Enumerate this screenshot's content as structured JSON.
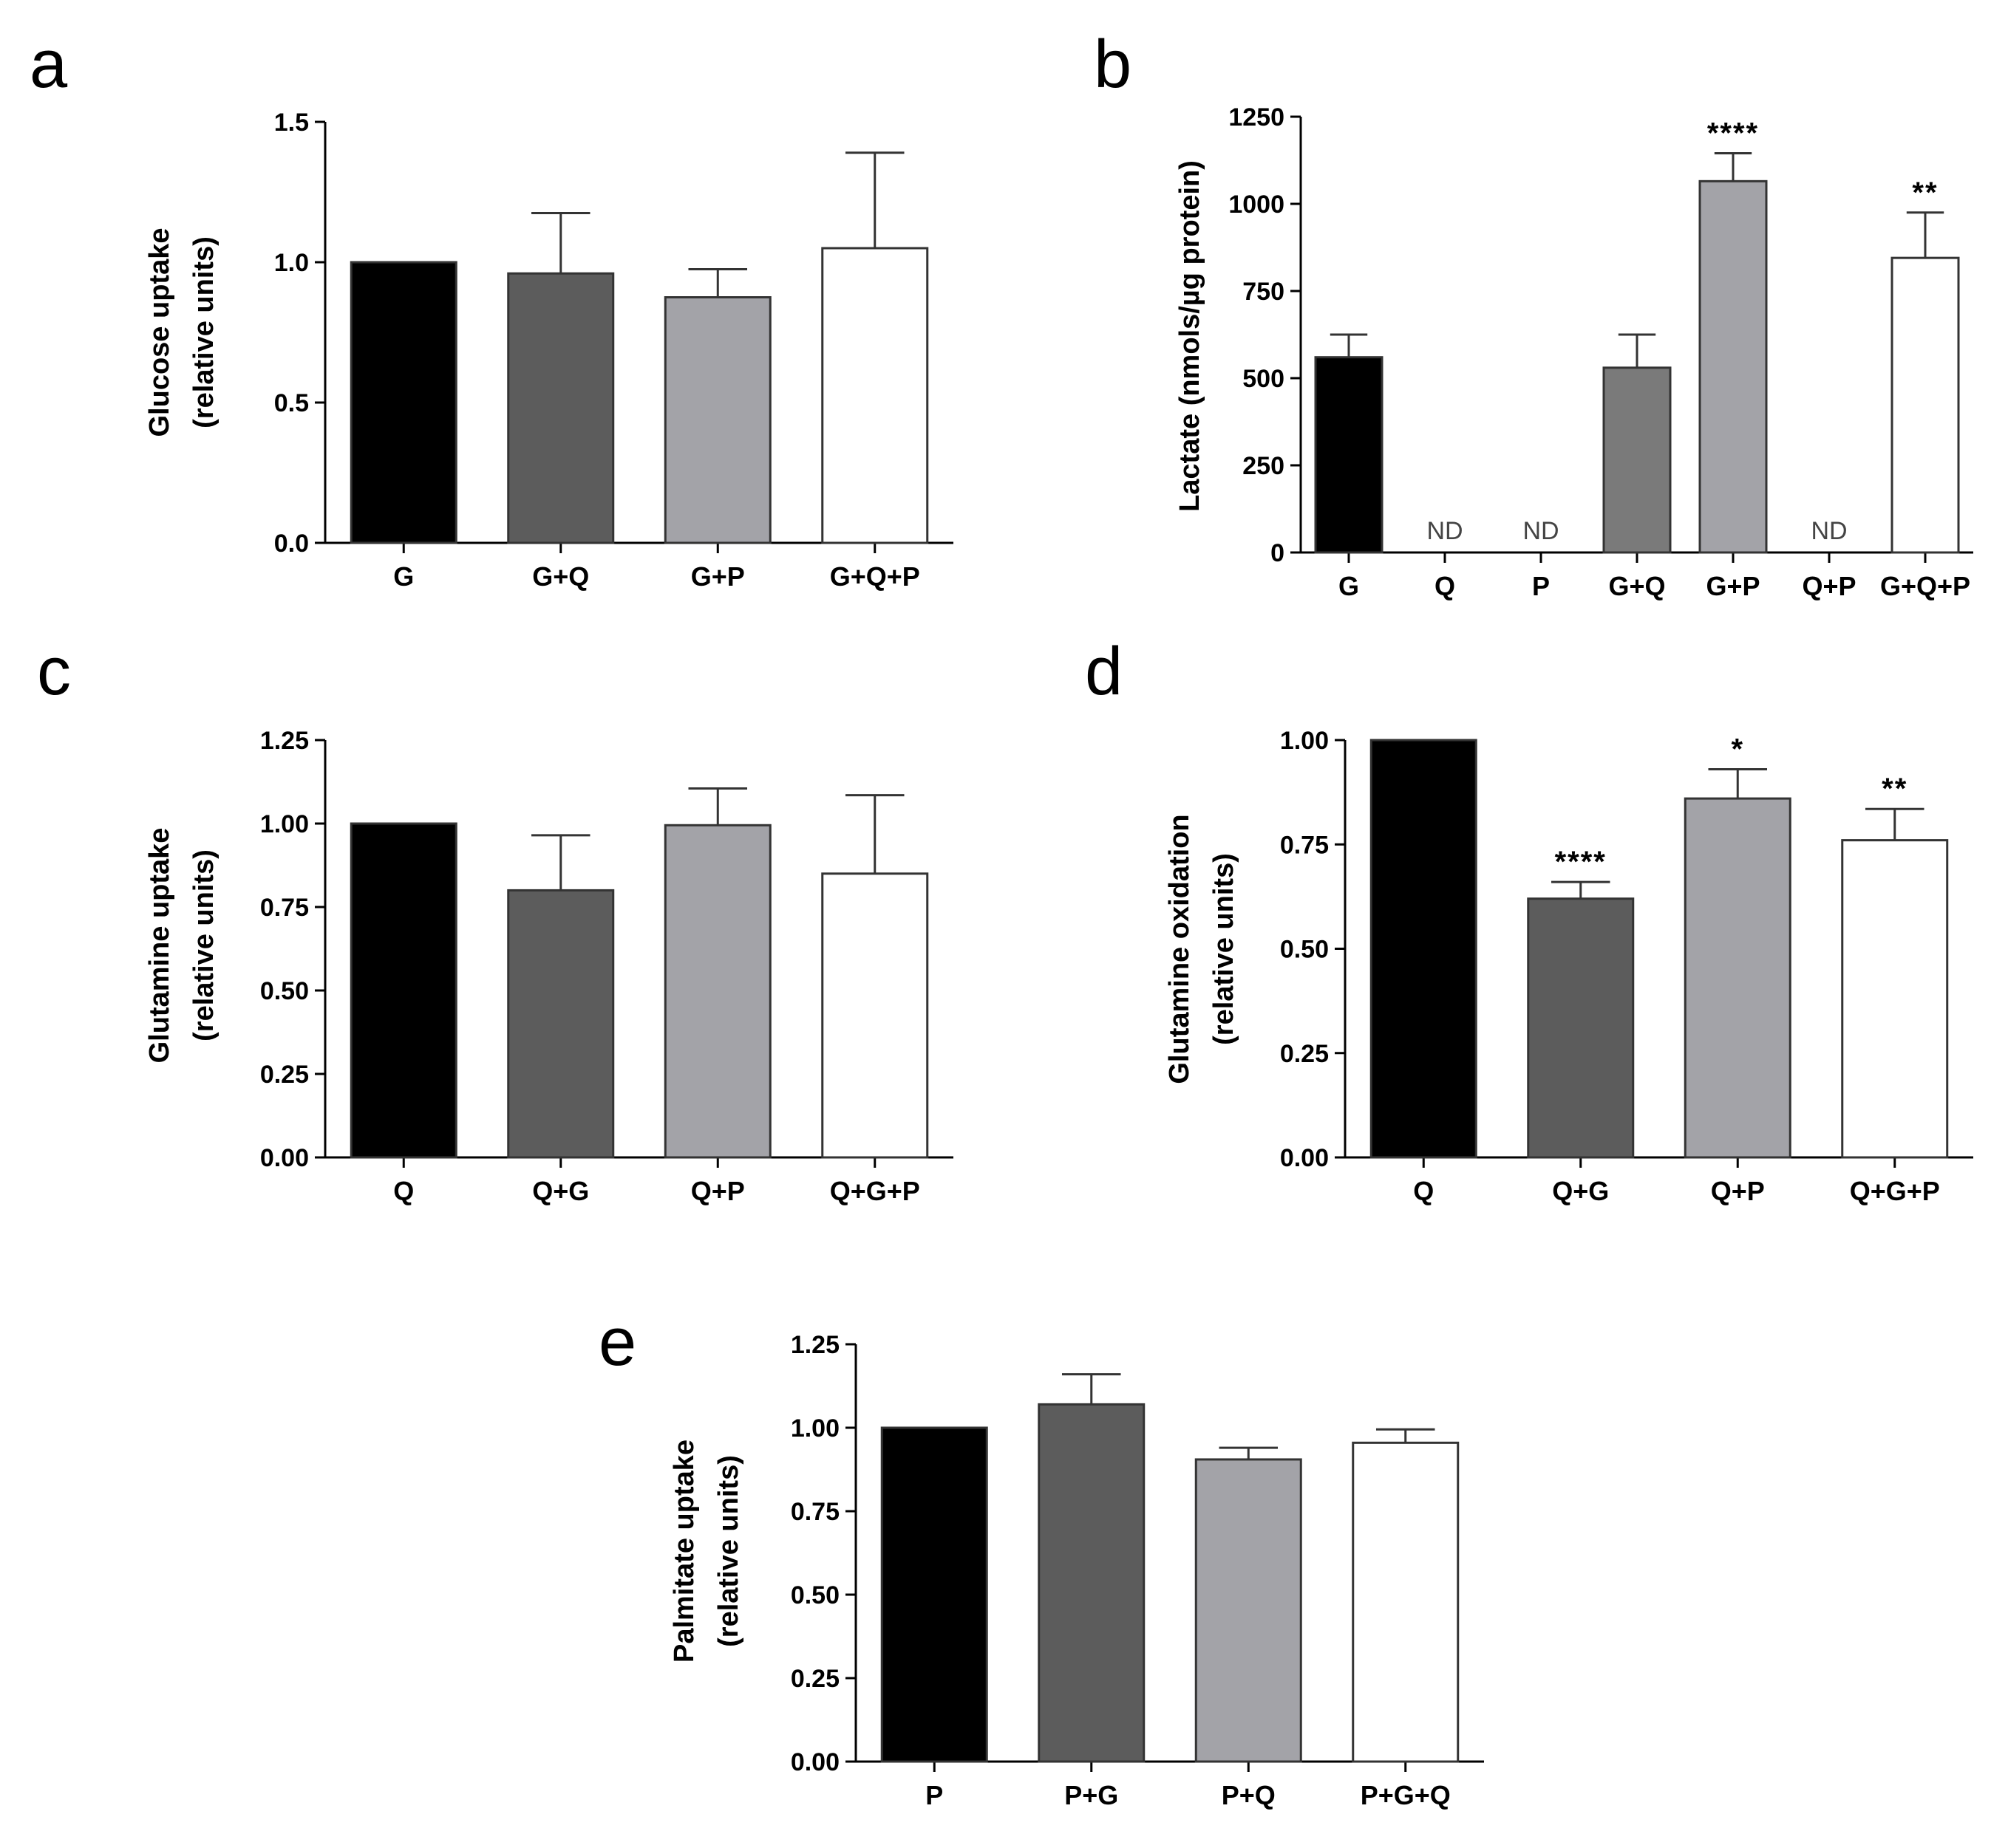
{
  "chart_data": [
    {
      "panel": "a",
      "type": "bar",
      "title": "",
      "xlabel": "",
      "ylabel": [
        "Glucose uptake",
        "(relative units)"
      ],
      "ylim": [
        0,
        1.5
      ],
      "yticks": [
        "0.0",
        "0.5",
        "1.0",
        "1.5"
      ],
      "categories": [
        "G",
        "G+Q",
        "G+P",
        "G+Q+P"
      ],
      "values": [
        1.0,
        0.96,
        0.875,
        1.05
      ],
      "errors": [
        0,
        0.215,
        0.1,
        0.34
      ],
      "colors": [
        "#000000",
        "#5c5c5c",
        "#a3a3a8",
        "#ffffff"
      ],
      "annotations": [
        "",
        "",
        "",
        ""
      ]
    },
    {
      "panel": "b",
      "type": "bar",
      "title": "",
      "xlabel": "",
      "ylabel": [
        "Lactate (nmols/µg protein)"
      ],
      "ylim": [
        0,
        1250
      ],
      "yticks": [
        "0",
        "250",
        "500",
        "750",
        "1000",
        "1250"
      ],
      "categories": [
        "G",
        "Q",
        "P",
        "G+Q",
        "G+P",
        "Q+P",
        "G+Q+P"
      ],
      "values": [
        560,
        null,
        null,
        530,
        1065,
        null,
        845
      ],
      "errors": [
        65,
        0,
        0,
        95,
        80,
        0,
        130
      ],
      "colors": [
        "#000000",
        "#000000",
        "#000000",
        "#7a7a7a",
        "#a3a3a8",
        "#000000",
        "#ffffff"
      ],
      "annotations": [
        "",
        "ND",
        "ND",
        "",
        "****",
        "ND",
        "**"
      ]
    },
    {
      "panel": "c",
      "type": "bar",
      "title": "",
      "xlabel": "",
      "ylabel": [
        "Glutamine uptake",
        "(relative units)"
      ],
      "ylim": [
        0,
        1.25
      ],
      "yticks": [
        "0.00",
        "0.25",
        "0.50",
        "0.75",
        "1.00",
        "1.25"
      ],
      "categories": [
        "Q",
        "Q+G",
        "Q+P",
        "Q+G+P"
      ],
      "values": [
        1.0,
        0.8,
        0.995,
        0.85
      ],
      "errors": [
        0,
        0.165,
        0.11,
        0.235
      ],
      "colors": [
        "#000000",
        "#5c5c5c",
        "#a3a3a8",
        "#ffffff"
      ],
      "annotations": [
        "",
        "",
        "",
        ""
      ]
    },
    {
      "panel": "d",
      "type": "bar",
      "title": "",
      "xlabel": "",
      "ylabel": [
        "Glutamine oxidation",
        "(relative units)"
      ],
      "ylim": [
        0,
        1.0
      ],
      "yticks": [
        "0.00",
        "0.25",
        "0.50",
        "0.75",
        "1.00"
      ],
      "categories": [
        "Q",
        "Q+G",
        "Q+P",
        "Q+G+P"
      ],
      "values": [
        1.0,
        0.62,
        0.86,
        0.76
      ],
      "errors": [
        0,
        0.04,
        0.07,
        0.075
      ],
      "colors": [
        "#000000",
        "#5c5c5c",
        "#a3a3a8",
        "#ffffff"
      ],
      "annotations": [
        "",
        "****",
        "*",
        "**"
      ]
    },
    {
      "panel": "e",
      "type": "bar",
      "title": "",
      "xlabel": "",
      "ylabel": [
        "Palmitate uptake",
        "(relative units)"
      ],
      "ylim": [
        0,
        1.25
      ],
      "yticks": [
        "0.00",
        "0.25",
        "0.50",
        "0.75",
        "1.00",
        "1.25"
      ],
      "categories": [
        "P",
        "P+G",
        "P+Q",
        "P+G+Q"
      ],
      "values": [
        1.0,
        1.07,
        0.905,
        0.955
      ],
      "errors": [
        0,
        0.09,
        0.035,
        0.04
      ],
      "colors": [
        "#000000",
        "#5c5c5c",
        "#a3a3a8",
        "#ffffff"
      ],
      "annotations": [
        "",
        "",
        "",
        ""
      ]
    }
  ]
}
